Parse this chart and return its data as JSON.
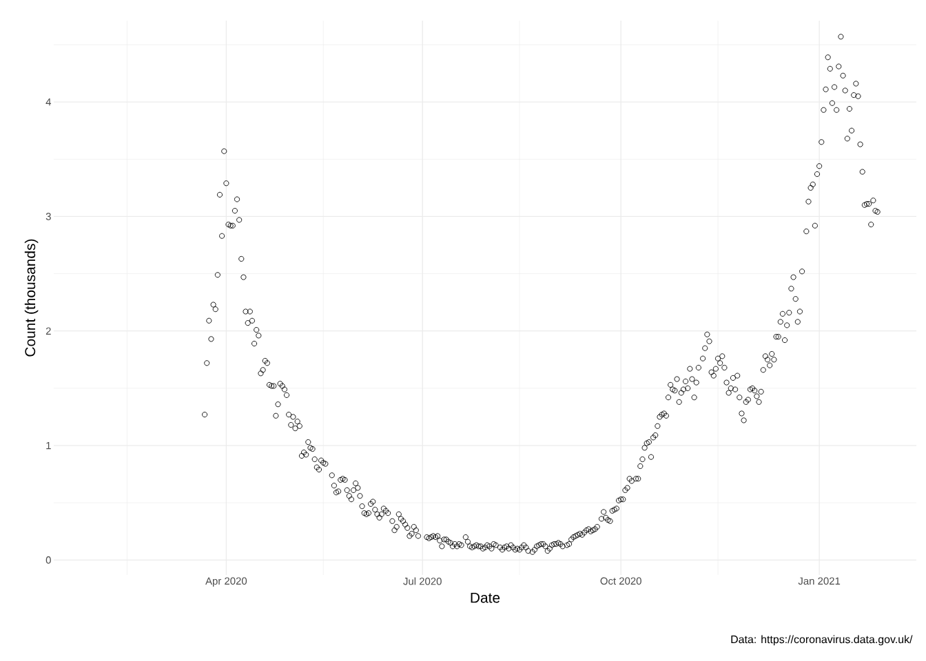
{
  "chart_data": {
    "type": "scatter",
    "xlabel": "Date",
    "ylabel": "Count (thousands)",
    "annotations": [
      "Data: https://coronavirus.data.gov.uk/"
    ],
    "xlim": [
      "2020-01-12",
      "2021-02-15"
    ],
    "xticks": [
      {
        "value": "2020-02-15",
        "label": null
      },
      {
        "value": "2020-04-01",
        "label": "Apr 2020"
      },
      {
        "value": "2020-05-16",
        "label": null
      },
      {
        "value": "2020-07-01",
        "label": "Jul 2020"
      },
      {
        "value": "2020-08-15",
        "label": null
      },
      {
        "value": "2020-10-01",
        "label": "Oct 2020"
      },
      {
        "value": "2020-11-15",
        "label": null
      },
      {
        "value": "2021-01-01",
        "label": "Jan 2021"
      }
    ],
    "ylim": [
      -0.13,
      4.71
    ],
    "yticks": [
      0,
      {
        "value": 0.5,
        "label": null
      },
      1,
      {
        "value": 1.5,
        "label": null
      },
      2,
      {
        "value": 2.5,
        "label": null
      },
      3,
      {
        "value": 3.5,
        "label": null
      },
      4,
      {
        "value": 4.5,
        "label": null
      }
    ],
    "grid": true,
    "marker": "circle",
    "color": "#000000",
    "x": [
      "2020-03-22",
      "2020-03-23",
      "2020-03-24",
      "2020-03-25",
      "2020-03-26",
      "2020-03-27",
      "2020-03-28",
      "2020-03-29",
      "2020-03-30",
      "2020-03-31",
      "2020-04-01",
      "2020-04-02",
      "2020-04-03",
      "2020-04-04",
      "2020-04-05",
      "2020-04-06",
      "2020-04-07",
      "2020-04-08",
      "2020-04-09",
      "2020-04-10",
      "2020-04-11",
      "2020-04-12",
      "2020-04-13",
      "2020-04-14",
      "2020-04-15",
      "2020-04-16",
      "2020-04-17",
      "2020-04-18",
      "2020-04-19",
      "2020-04-20",
      "2020-04-21",
      "2020-04-22",
      "2020-04-23",
      "2020-04-24",
      "2020-04-25",
      "2020-04-26",
      "2020-04-27",
      "2020-04-28",
      "2020-04-29",
      "2020-04-30",
      "2020-05-01",
      "2020-05-02",
      "2020-05-03",
      "2020-05-04",
      "2020-05-05",
      "2020-05-06",
      "2020-05-07",
      "2020-05-08",
      "2020-05-09",
      "2020-05-10",
      "2020-05-11",
      "2020-05-12",
      "2020-05-13",
      "2020-05-14",
      "2020-05-15",
      "2020-05-16",
      "2020-05-17",
      "2020-05-20",
      "2020-05-21",
      "2020-05-22",
      "2020-05-23",
      "2020-05-24",
      "2020-05-25",
      "2020-05-26",
      "2020-05-27",
      "2020-05-28",
      "2020-05-29",
      "2020-05-30",
      "2020-05-31",
      "2020-06-01",
      "2020-06-02",
      "2020-06-03",
      "2020-06-04",
      "2020-06-05",
      "2020-06-06",
      "2020-06-07",
      "2020-06-08",
      "2020-06-09",
      "2020-06-10",
      "2020-06-11",
      "2020-06-12",
      "2020-06-13",
      "2020-06-14",
      "2020-06-15",
      "2020-06-17",
      "2020-06-18",
      "2020-06-19",
      "2020-06-20",
      "2020-06-21",
      "2020-06-22",
      "2020-06-23",
      "2020-06-24",
      "2020-06-25",
      "2020-06-26",
      "2020-06-27",
      "2020-06-28",
      "2020-06-29",
      "2020-07-03",
      "2020-07-04",
      "2020-07-05",
      "2020-07-06",
      "2020-07-07",
      "2020-07-08",
      "2020-07-09",
      "2020-07-10",
      "2020-07-11",
      "2020-07-12",
      "2020-07-13",
      "2020-07-14",
      "2020-07-15",
      "2020-07-16",
      "2020-07-17",
      "2020-07-18",
      "2020-07-19",
      "2020-07-21",
      "2020-07-22",
      "2020-07-23",
      "2020-07-24",
      "2020-07-25",
      "2020-07-26",
      "2020-07-27",
      "2020-07-28",
      "2020-07-29",
      "2020-07-30",
      "2020-07-31",
      "2020-08-01",
      "2020-08-02",
      "2020-08-03",
      "2020-08-04",
      "2020-08-06",
      "2020-08-07",
      "2020-08-08",
      "2020-08-09",
      "2020-08-10",
      "2020-08-11",
      "2020-08-12",
      "2020-08-13",
      "2020-08-14",
      "2020-08-15",
      "2020-08-16",
      "2020-08-17",
      "2020-08-18",
      "2020-08-19",
      "2020-08-21",
      "2020-08-22",
      "2020-08-23",
      "2020-08-24",
      "2020-08-25",
      "2020-08-26",
      "2020-08-27",
      "2020-08-28",
      "2020-08-29",
      "2020-08-30",
      "2020-08-31",
      "2020-09-01",
      "2020-09-02",
      "2020-09-03",
      "2020-09-04",
      "2020-09-06",
      "2020-09-07",
      "2020-09-08",
      "2020-09-09",
      "2020-09-10",
      "2020-09-11",
      "2020-09-12",
      "2020-09-13",
      "2020-09-14",
      "2020-09-15",
      "2020-09-16",
      "2020-09-17",
      "2020-09-18",
      "2020-09-19",
      "2020-09-20",
      "2020-09-22",
      "2020-09-23",
      "2020-09-24",
      "2020-09-25",
      "2020-09-26",
      "2020-09-27",
      "2020-09-28",
      "2020-09-29",
      "2020-09-30",
      "2020-10-01",
      "2020-10-02",
      "2020-10-03",
      "2020-10-04",
      "2020-10-05",
      "2020-10-06",
      "2020-10-08",
      "2020-10-09",
      "2020-10-10",
      "2020-10-11",
      "2020-10-12",
      "2020-10-13",
      "2020-10-14",
      "2020-10-15",
      "2020-10-16",
      "2020-10-17",
      "2020-10-18",
      "2020-10-19",
      "2020-10-20",
      "2020-10-21",
      "2020-10-22",
      "2020-10-23",
      "2020-10-24",
      "2020-10-25",
      "2020-10-26",
      "2020-10-27",
      "2020-10-28",
      "2020-10-29",
      "2020-10-30",
      "2020-10-31",
      "2020-11-01",
      "2020-11-02",
      "2020-11-03",
      "2020-11-04",
      "2020-11-05",
      "2020-11-06",
      "2020-11-08",
      "2020-11-09",
      "2020-11-10",
      "2020-11-11",
      "2020-11-12",
      "2020-11-13",
      "2020-11-14",
      "2020-11-15",
      "2020-11-16",
      "2020-11-17",
      "2020-11-18",
      "2020-11-19",
      "2020-11-20",
      "2020-11-21",
      "2020-11-22",
      "2020-11-23",
      "2020-11-24",
      "2020-11-25",
      "2020-11-26",
      "2020-11-27",
      "2020-11-28",
      "2020-11-29",
      "2020-11-30",
      "2020-12-01",
      "2020-12-02",
      "2020-12-03",
      "2020-12-04",
      "2020-12-05",
      "2020-12-06",
      "2020-12-07",
      "2020-12-08",
      "2020-12-09",
      "2020-12-10",
      "2020-12-11",
      "2020-12-12",
      "2020-12-13",
      "2020-12-14",
      "2020-12-15",
      "2020-12-16",
      "2020-12-17",
      "2020-12-18",
      "2020-12-19",
      "2020-12-20",
      "2020-12-21",
      "2020-12-22",
      "2020-12-23",
      "2020-12-24",
      "2020-12-26",
      "2020-12-27",
      "2020-12-28",
      "2020-12-29",
      "2020-12-30",
      "2020-12-31",
      "2021-01-01",
      "2021-01-02",
      "2021-01-03",
      "2021-01-04",
      "2021-01-05",
      "2021-01-06",
      "2021-01-07",
      "2021-01-08",
      "2021-01-09",
      "2021-01-10",
      "2021-01-11",
      "2021-01-12",
      "2021-01-13",
      "2021-01-14",
      "2021-01-15",
      "2021-01-16",
      "2021-01-17",
      "2021-01-18",
      "2021-01-19",
      "2021-01-20",
      "2021-01-21",
      "2021-01-22",
      "2021-01-23",
      "2021-01-24",
      "2021-01-25",
      "2021-01-26",
      "2021-01-27",
      "2021-01-28"
    ],
    "values": [
      1.27,
      1.72,
      2.09,
      1.93,
      2.23,
      2.19,
      2.49,
      3.19,
      2.83,
      3.57,
      3.29,
      2.93,
      2.92,
      2.92,
      3.05,
      3.15,
      2.97,
      2.63,
      2.47,
      2.17,
      2.07,
      2.17,
      2.09,
      1.89,
      2.01,
      1.96,
      1.63,
      1.66,
      1.74,
      1.72,
      1.53,
      1.52,
      1.52,
      1.26,
      1.36,
      1.54,
      1.52,
      1.49,
      1.44,
      1.27,
      1.18,
      1.25,
      1.15,
      1.21,
      1.17,
      0.91,
      0.94,
      0.92,
      1.03,
      0.98,
      0.97,
      0.88,
      0.81,
      0.79,
      0.87,
      0.85,
      0.84,
      0.74,
      0.65,
      0.59,
      0.6,
      0.7,
      0.71,
      0.7,
      0.61,
      0.56,
      0.53,
      0.61,
      0.67,
      0.63,
      0.56,
      0.47,
      0.41,
      0.4,
      0.41,
      0.49,
      0.51,
      0.44,
      0.4,
      0.37,
      0.4,
      0.45,
      0.43,
      0.41,
      0.34,
      0.26,
      0.29,
      0.4,
      0.36,
      0.34,
      0.31,
      0.28,
      0.21,
      0.23,
      0.29,
      0.26,
      0.21,
      0.2,
      0.19,
      0.2,
      0.21,
      0.2,
      0.21,
      0.17,
      0.12,
      0.18,
      0.18,
      0.16,
      0.15,
      0.12,
      0.14,
      0.12,
      0.14,
      0.13,
      0.2,
      0.16,
      0.12,
      0.11,
      0.12,
      0.13,
      0.12,
      0.12,
      0.1,
      0.11,
      0.13,
      0.12,
      0.1,
      0.14,
      0.13,
      0.11,
      0.09,
      0.11,
      0.12,
      0.1,
      0.13,
      0.11,
      0.09,
      0.1,
      0.09,
      0.11,
      0.13,
      0.11,
      0.08,
      0.07,
      0.09,
      0.12,
      0.13,
      0.14,
      0.14,
      0.12,
      0.08,
      0.1,
      0.13,
      0.14,
      0.14,
      0.15,
      0.14,
      0.12,
      0.13,
      0.14,
      0.18,
      0.2,
      0.21,
      0.22,
      0.23,
      0.22,
      0.24,
      0.26,
      0.27,
      0.25,
      0.26,
      0.27,
      0.29,
      0.36,
      0.42,
      0.37,
      0.35,
      0.34,
      0.43,
      0.44,
      0.45,
      0.52,
      0.53,
      0.53,
      0.61,
      0.63,
      0.71,
      0.69,
      0.71,
      0.71,
      0.82,
      0.88,
      0.98,
      1.02,
      1.03,
      0.9,
      1.07,
      1.09,
      1.17,
      1.25,
      1.27,
      1.28,
      1.26,
      1.42,
      1.53,
      1.49,
      1.48,
      1.58,
      1.38,
      1.46,
      1.49,
      1.56,
      1.5,
      1.67,
      1.58,
      1.42,
      1.55,
      1.68,
      1.76,
      1.85,
      1.97,
      1.91,
      1.64,
      1.61,
      1.67,
      1.76,
      1.72,
      1.78,
      1.68,
      1.55,
      1.46,
      1.5,
      1.59,
      1.49,
      1.61,
      1.42,
      1.28,
      1.22,
      1.38,
      1.4,
      1.49,
      1.5,
      1.48,
      1.43,
      1.38,
      1.47,
      1.66,
      1.78,
      1.75,
      1.7,
      1.8,
      1.75,
      1.95,
      1.95,
      2.08,
      2.15,
      1.92,
      2.05,
      2.16,
      2.37,
      2.47,
      2.28,
      2.08,
      2.17,
      2.52,
      2.87,
      3.13,
      3.25,
      3.28,
      2.92,
      3.37,
      3.44,
      3.65,
      3.93,
      4.11,
      4.39,
      4.29,
      3.99,
      4.13,
      3.93,
      4.31,
      4.57,
      4.23,
      4.1,
      3.68,
      3.94,
      3.75,
      4.06,
      4.16,
      4.05,
      3.63,
      3.39,
      3.1,
      3.11,
      3.11,
      2.93,
      3.14,
      3.05,
      3.04
    ]
  }
}
